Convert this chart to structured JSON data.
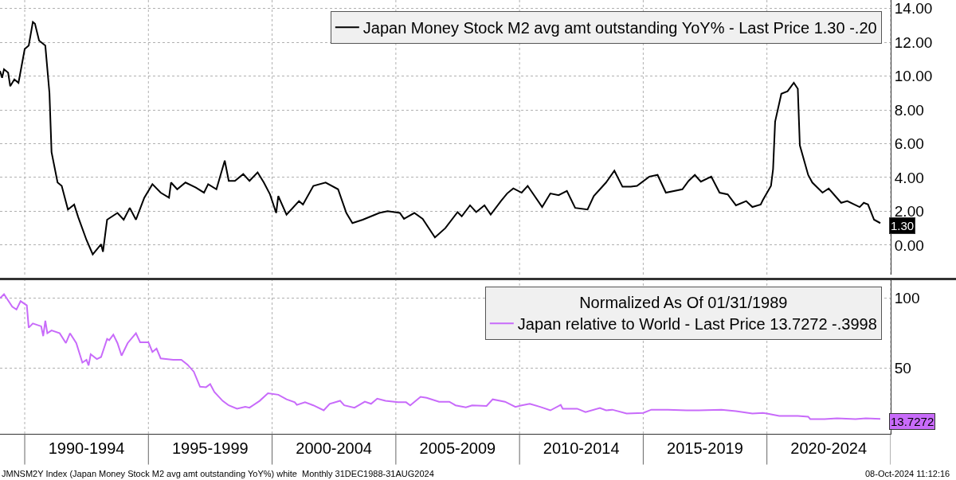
{
  "chart_data": [
    {
      "type": "line",
      "tick_labels": "y",
      "grid": true,
      "legend": "top right",
      "xlim": [
        "1989-01-01",
        "2025-01-01"
      ],
      "xticks": [
        {
          "value": "1990-01-01",
          "label": null
        },
        {
          "value": "1995-01-01",
          "label": null
        },
        {
          "value": "2000-01-01",
          "label": null
        },
        {
          "value": "2005-01-01",
          "label": null
        },
        {
          "value": "2010-01-01",
          "label": null
        },
        {
          "value": "2015-01-01",
          "label": null
        },
        {
          "value": "2020-01-01",
          "label": null
        },
        {
          "value": "2025-01-01",
          "label": null
        }
      ],
      "ylim": [
        -1.75,
        14.5
      ],
      "yticks": [
        {
          "value": 0,
          "label": "0.00"
        },
        {
          "value": 2,
          "label": "2.00"
        },
        {
          "value": 4,
          "label": "4.00"
        },
        {
          "value": 6,
          "label": "6.00"
        },
        {
          "value": 8,
          "label": "8.00"
        },
        {
          "value": 10,
          "label": "10.00"
        },
        {
          "value": 12,
          "label": "12.00"
        },
        {
          "value": 14,
          "label": "14.00"
        }
      ],
      "series": [
        {
          "name": "Japan Money Stock M2 avg amt outstanding YoY% - Last Price 1.30 -.20",
          "color": "#000000",
          "x": [
            "1989-01",
            "1989-02",
            "1989-03",
            "1989-05",
            "1989-06",
            "1989-08",
            "1989-10",
            "1990-01",
            "1990-03",
            "1990-05",
            "1990-06",
            "1990-08",
            "1990-11",
            "1991-01",
            "1991-02",
            "1991-05",
            "1991-07",
            "1991-10",
            "1992-01",
            "1992-03",
            "1992-07",
            "1992-10",
            "1993-02",
            "1993-03",
            "1993-05",
            "1993-10",
            "1994-01",
            "1994-04",
            "1994-07",
            "1994-11",
            "1995-03",
            "1995-07",
            "1995-11",
            "1995-12",
            "1996-03",
            "1996-07",
            "1996-12",
            "1997-04",
            "1997-06",
            "1997-10",
            "1998-02",
            "1998-04",
            "1998-07",
            "1998-11",
            "1999-02",
            "1999-06",
            "1999-09",
            "1999-12",
            "2000-03",
            "2000-04",
            "2000-08",
            "2001-02",
            "2001-04",
            "2001-09",
            "2002-03",
            "2002-09",
            "2003-01",
            "2003-04",
            "2003-09",
            "2004-05",
            "2004-09",
            "2005-03",
            "2005-05",
            "2005-10",
            "2006-02",
            "2006-08",
            "2007-01",
            "2007-07",
            "2007-09",
            "2008-01",
            "2008-04",
            "2008-08",
            "2008-11",
            "2009-04",
            "2009-07",
            "2009-10",
            "2010-02",
            "2010-05",
            "2010-12",
            "2011-04",
            "2011-08",
            "2011-12",
            "2012-04",
            "2012-10",
            "2013-01",
            "2013-07",
            "2013-11",
            "2014-03",
            "2014-07",
            "2014-10",
            "2015-04",
            "2015-08",
            "2015-12",
            "2016-08",
            "2016-11",
            "2017-02",
            "2017-05",
            "2017-10",
            "2018-02",
            "2018-06",
            "2018-10",
            "2019-03",
            "2019-06",
            "2019-10",
            "2019-11",
            "2020-03",
            "2020-04",
            "2020-05",
            "2020-08",
            "2020-11",
            "2021-02",
            "2021-04",
            "2021-05",
            "2021-09",
            "2021-11",
            "2022-04",
            "2022-07",
            "2023-01",
            "2023-04",
            "2023-10",
            "2023-12",
            "2024-02",
            "2024-05",
            "2024-08"
          ],
          "values": [
            10.3,
            9.9,
            10.4,
            10.2,
            9.4,
            9.8,
            9.6,
            11.6,
            11.8,
            13.2,
            13.1,
            12.1,
            11.8,
            9.0,
            5.5,
            3.7,
            3.5,
            2.1,
            2.4,
            1.65,
            0.3,
            -0.55,
            0.05,
            -0.4,
            1.5,
            1.9,
            1.5,
            2.2,
            1.5,
            2.8,
            3.6,
            3.1,
            2.8,
            3.7,
            3.3,
            3.7,
            3.4,
            3.1,
            3.6,
            3.3,
            5.0,
            3.8,
            3.8,
            4.2,
            3.8,
            4.3,
            3.7,
            3.0,
            1.9,
            2.9,
            1.8,
            2.6,
            2.4,
            3.5,
            3.7,
            3.3,
            1.9,
            1.3,
            1.5,
            1.9,
            2.0,
            1.9,
            1.55,
            1.9,
            1.55,
            0.45,
            1.0,
            1.95,
            1.7,
            2.35,
            1.95,
            2.35,
            1.8,
            2.6,
            3.05,
            3.35,
            3.1,
            3.5,
            2.25,
            3.05,
            2.95,
            3.2,
            2.2,
            2.1,
            2.9,
            3.7,
            4.4,
            3.45,
            3.45,
            3.5,
            4.05,
            4.15,
            3.1,
            3.3,
            3.8,
            4.15,
            3.75,
            4.05,
            3.1,
            3.0,
            2.35,
            2.6,
            2.25,
            2.4,
            2.65,
            3.5,
            4.5,
            7.3,
            8.95,
            9.1,
            9.6,
            9.25,
            5.9,
            4.15,
            3.7,
            3.1,
            3.35,
            2.5,
            2.6,
            2.25,
            2.5,
            2.4,
            1.5,
            1.3
          ]
        }
      ],
      "annotations": [
        {
          "text": "1.30",
          "x": "2024-08",
          "y": 1.3
        }
      ]
    },
    {
      "type": "line",
      "grid": true,
      "legend": "top right",
      "legend_title": "Normalized As Of 01/31/1989",
      "xlim": [
        "1989-01-01",
        "2025-01-01"
      ],
      "xticks": [
        {
          "value": "1990-01-01",
          "label": null
        },
        {
          "value": "1992-07-01",
          "label": "1990-1994"
        },
        {
          "value": "1995-01-01",
          "label": null
        },
        {
          "value": "1997-07-01",
          "label": "1995-1999"
        },
        {
          "value": "2000-01-01",
          "label": null
        },
        {
          "value": "2002-07-01",
          "label": "2000-2004"
        },
        {
          "value": "2005-01-01",
          "label": null
        },
        {
          "value": "2007-07-01",
          "label": "2005-2009"
        },
        {
          "value": "2010-01-01",
          "label": null
        },
        {
          "value": "2012-07-01",
          "label": "2010-2014"
        },
        {
          "value": "2015-01-01",
          "label": null
        },
        {
          "value": "2017-07-01",
          "label": "2015-2019"
        },
        {
          "value": "2020-01-01",
          "label": null
        },
        {
          "value": "2022-07-01",
          "label": "2020-2024"
        },
        {
          "value": "2025-01-01",
          "label": null
        }
      ],
      "ylim": [
        3,
        113
      ],
      "yticks": [
        50,
        100
      ],
      "series": [
        {
          "name": "Japan relative to World - Last Price 13.7272 -.3998",
          "color": "#c86bfa",
          "x": [
            "1989-01",
            "1989-03",
            "1989-07",
            "1989-09",
            "1989-11",
            "1990-02",
            "1990-03",
            "1990-05",
            "1990-09",
            "1990-10",
            "1990-11",
            "1990-12",
            "1991-02",
            "1991-06",
            "1991-09",
            "1991-11",
            "1992-02",
            "1992-05",
            "1992-07",
            "1992-08",
            "1992-09",
            "1992-12",
            "1993-02",
            "1993-05",
            "1993-06",
            "1993-08",
            "1993-10",
            "1993-12",
            "1994-03",
            "1994-07",
            "1994-09",
            "1995-01",
            "1995-03",
            "1995-05",
            "1995-07",
            "1996-01",
            "1996-05",
            "1996-08",
            "1996-11",
            "1997-02",
            "1997-05",
            "1997-07",
            "1997-09",
            "1998-01",
            "1998-04",
            "1998-08",
            "1998-12",
            "1999-02",
            "1999-07",
            "1999-11",
            "2000-04",
            "2000-08",
            "2000-12",
            "2001-01",
            "2001-05",
            "2001-09",
            "2002-02",
            "2002-05",
            "2002-10",
            "2002-12",
            "2003-05",
            "2003-10",
            "2004-01",
            "2004-04",
            "2004-08",
            "2005-02",
            "2005-06",
            "2005-08",
            "2006-01",
            "2006-04",
            "2006-10",
            "2007-03",
            "2007-06",
            "2007-11",
            "2008-02",
            "2008-09",
            "2008-12",
            "2009-06",
            "2009-11",
            "2010-02",
            "2010-06",
            "2010-11",
            "2011-04",
            "2011-09",
            "2011-10",
            "2012-05",
            "2012-09",
            "2013-04",
            "2013-07",
            "2013-10",
            "2014-05",
            "2015-01",
            "2015-05",
            "2016-01",
            "2016-10",
            "2017-04",
            "2018-03",
            "2018-10",
            "2019-06",
            "2019-11",
            "2020-01",
            "2020-07",
            "2021-04",
            "2021-09",
            "2021-10",
            "2022-05",
            "2022-11",
            "2023-08",
            "2024-01",
            "2024-08"
          ],
          "values": [
            100,
            103,
            94,
            92,
            98,
            95,
            79,
            82,
            80,
            73,
            84,
            75,
            77,
            75,
            68,
            75,
            68,
            54,
            56,
            52,
            60,
            56.5,
            58,
            71,
            70,
            74,
            68,
            59,
            68,
            75,
            68.6,
            68.6,
            61.6,
            64,
            57,
            56,
            56,
            52.5,
            47.5,
            36.7,
            36.4,
            38.6,
            33,
            26.6,
            23.4,
            21,
            22.3,
            21.7,
            26.6,
            32,
            31,
            27.7,
            25.6,
            23.7,
            25.6,
            23.4,
            19.8,
            24.5,
            26.7,
            23.4,
            21.7,
            26,
            24.5,
            28.2,
            26.7,
            25.6,
            25.6,
            23.4,
            29.5,
            28.8,
            26,
            26,
            23.4,
            22,
            23.4,
            23,
            27.7,
            26,
            22.3,
            23.4,
            24.5,
            22.3,
            19.8,
            23.7,
            21,
            21,
            18.6,
            21.5,
            19.8,
            20.3,
            17.5,
            18,
            20.3,
            20.3,
            19.8,
            19.8,
            20.3,
            19.2,
            17.5,
            18,
            17.5,
            15.8,
            15.8,
            15.3,
            13.6,
            13.6,
            14.1,
            13.6,
            14.1,
            13.7272
          ]
        }
      ],
      "annotations": [
        {
          "text": "13.7272",
          "x": "2024-08",
          "y": 13.7272
        },
        "JMNSM2Y Index (Japan Money Stock M2 avg amt outstanding YoY%) white  Monthly 31DEC1988-31AUG2024",
        "08-Oct-2024 11:12:16"
      ]
    }
  ]
}
